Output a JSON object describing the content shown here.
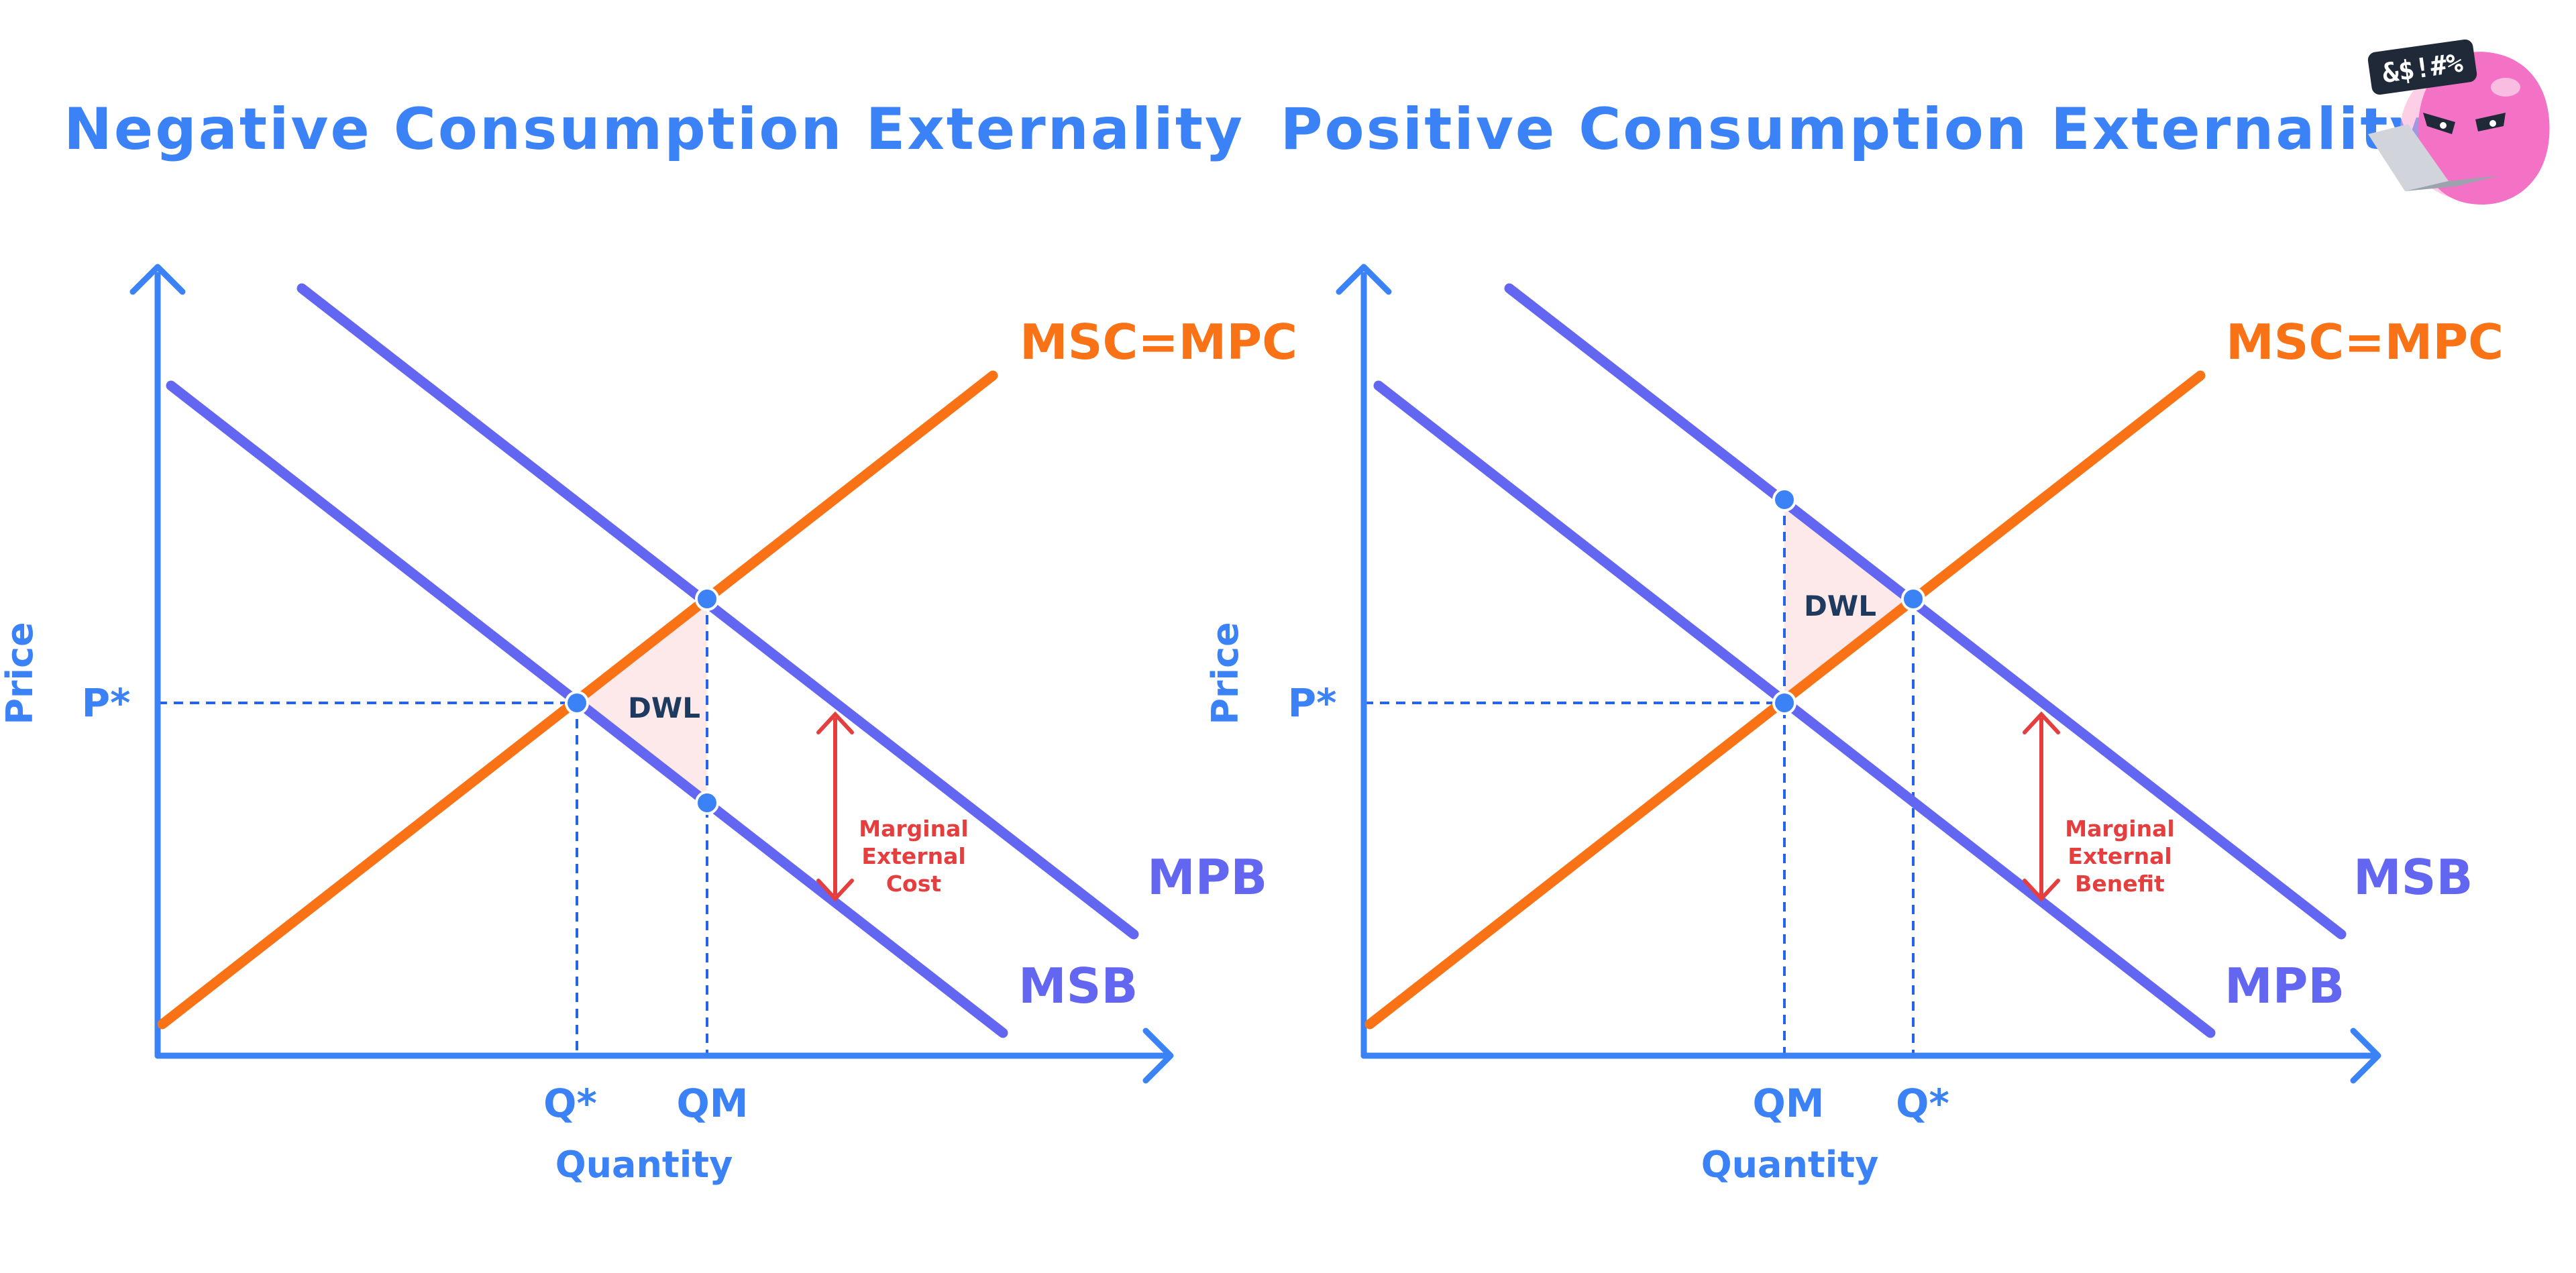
{
  "colors": {
    "axis": "#3b82f6",
    "supply": "#f97316",
    "demand": "#6366f1",
    "guide": "#2563eb",
    "arrow": "#e53e3e",
    "dwl_fill": "#fde8ea",
    "dwl_text": "#1e3a5f",
    "mascot": "#f472c6"
  },
  "mascot": {
    "badge_text": "&$!#%",
    "icon": "cursing-blob-with-laptop-icon"
  },
  "panels": [
    {
      "id": "negative",
      "title": "Negative Consumption Externality",
      "x_axis_label": "Quantity",
      "y_axis_label": "Price",
      "price_label": "P*",
      "qty_labels": [
        "Q*",
        "QM"
      ],
      "supply_label": "MSC=MPC",
      "upper_demand_label": "MPB",
      "lower_demand_label": "MSB",
      "dwl_label": "DWL",
      "gap_label_lines": [
        "Marginal",
        "External",
        "Cost"
      ]
    },
    {
      "id": "positive",
      "title": "Positive Consumption Externality",
      "x_axis_label": "Quantity",
      "y_axis_label": "Price",
      "price_label": "P*",
      "qty_labels": [
        "QM",
        "Q*"
      ],
      "supply_label": "MSC=MPC",
      "upper_demand_label": "MSB",
      "lower_demand_label": "MPB",
      "dwl_label": "DWL",
      "gap_label_lines": [
        "Marginal",
        "External",
        "Benefit"
      ]
    }
  ]
}
